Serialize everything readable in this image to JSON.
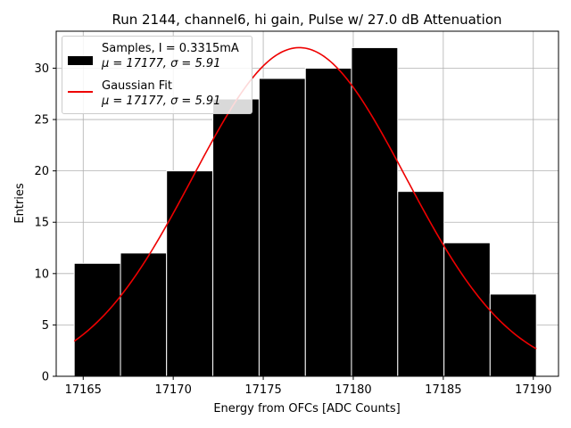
{
  "chart_data": {
    "type": "bar",
    "title": "Run 2144, channel6, hi gain, Pulse w/ 27.0 dB Attenuation",
    "xlabel": "Energy from OFCs [ADC Counts]",
    "ylabel": "Entries",
    "xlim": [
      17163.5,
      17191.4
    ],
    "ylim": [
      0,
      33.6
    ],
    "xticks": [
      17165,
      17170,
      17175,
      17180,
      17185,
      17190
    ],
    "xtick_labels": [
      "17165",
      "17170",
      "17175",
      "17180",
      "17185",
      "17190"
    ],
    "yticks": [
      0,
      5,
      10,
      15,
      20,
      25,
      30
    ],
    "ytick_labels": [
      "0",
      "5",
      "10",
      "15",
      "20",
      "25",
      "30"
    ],
    "grid": true,
    "legend_position": "top-left",
    "bins": {
      "edges": [
        17164.5,
        17167.07,
        17169.63,
        17172.2,
        17174.77,
        17177.34,
        17179.9,
        17182.47,
        17185.04,
        17187.6,
        17190.17
      ],
      "counts": [
        11,
        12,
        20,
        27,
        29,
        30,
        32,
        18,
        13,
        8
      ]
    },
    "series": [
      {
        "name": "Samples, I = 0.3315mA",
        "kind": "histogram",
        "color": "#000000",
        "mu_label": "μ = 17177, ",
        "sigma_label": "σ = 5.91"
      },
      {
        "name": "Gaussian Fit",
        "kind": "line",
        "color": "#ee0000",
        "mu": 17177,
        "sigma": 5.91,
        "amplitude": 32,
        "x_range": [
          17164.5,
          17190.17
        ],
        "mu_label": "μ = 17177, ",
        "sigma_label": "σ = 5.91"
      }
    ]
  }
}
